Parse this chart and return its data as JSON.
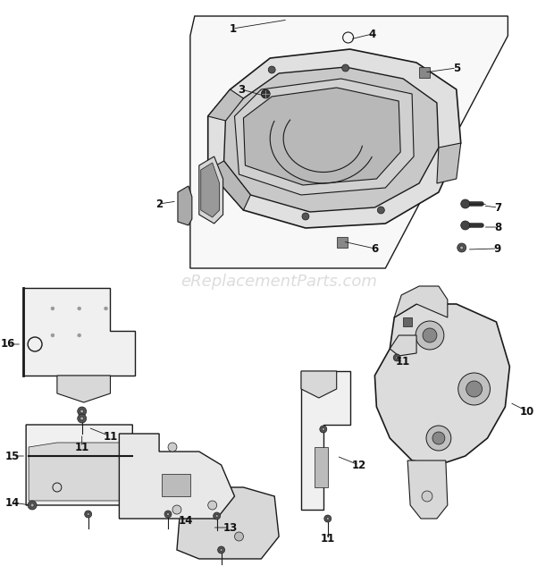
{
  "bg_color": "#ffffff",
  "watermark": "eReplacementParts.com",
  "watermark_color": "#bbbbbb",
  "figsize": [
    6.2,
    6.33
  ],
  "dpi": 100,
  "line_color": "#1a1a1a",
  "label_fontsize": 8.5,
  "label_color": "#111111",
  "fill_light": "#f0f0f0",
  "fill_mid": "#d8d8d8",
  "fill_dark": "#b0b0b0",
  "fill_darker": "#888888"
}
